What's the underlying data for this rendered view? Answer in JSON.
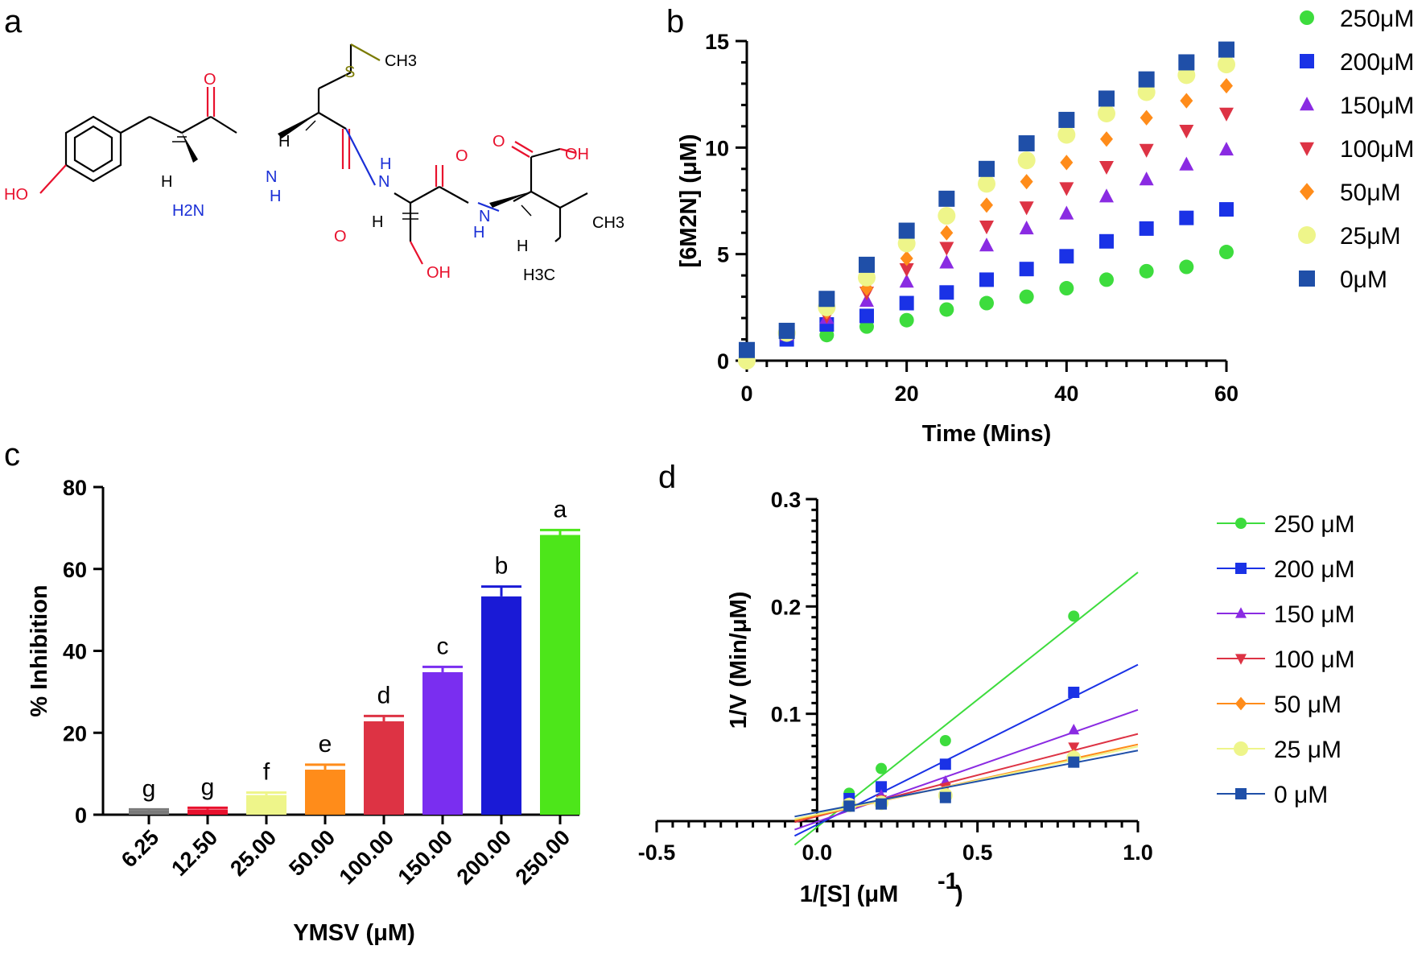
{
  "panels": {
    "a": {
      "label": "a"
    },
    "b": {
      "label": "b"
    },
    "c": {
      "label": "c"
    },
    "d": {
      "label": "d"
    }
  },
  "molecule": {
    "atoms": [
      "CH3",
      "S",
      "HO",
      "H",
      "H2N",
      "O",
      "H",
      "N",
      "H",
      "O",
      "N",
      "H",
      "H",
      "O",
      "OH",
      "H",
      "N",
      "O",
      "OH",
      "H",
      "CH3",
      "H3C"
    ],
    "colors": {
      "bond": "#000000",
      "oxygen": "#e8112d",
      "nitrogen": "#1a2fd6",
      "sulfur": "#7a7a00"
    }
  },
  "chart_data": [
    {
      "panel": "b",
      "type": "scatter",
      "xlabel": "Time (Mins)",
      "ylabel": "[6M2N] (μM)",
      "xlim": [
        0,
        60
      ],
      "ylim": [
        0,
        15
      ],
      "xticks": [
        "0",
        "20",
        "40",
        "60"
      ],
      "yticks": [
        "0",
        "5",
        "10",
        "15"
      ],
      "legend_position": "right",
      "x": [
        0,
        5,
        10,
        15,
        20,
        25,
        30,
        35,
        40,
        45,
        50,
        55,
        60
      ],
      "series": [
        {
          "name": "250μM",
          "color": "#3ddc3d",
          "marker": "circle",
          "values": [
            0.3,
            1.0,
            1.2,
            1.6,
            1.9,
            2.4,
            2.7,
            3.0,
            3.4,
            3.8,
            4.2,
            4.4,
            5.1
          ]
        },
        {
          "name": "200μM",
          "color": "#1a32e6",
          "marker": "square",
          "values": [
            0.2,
            1.0,
            1.7,
            2.1,
            2.7,
            3.2,
            3.8,
            4.3,
            4.9,
            5.6,
            6.2,
            6.7,
            7.1
          ]
        },
        {
          "name": "150μM",
          "color": "#8a2be2",
          "marker": "triangle-up",
          "values": [
            0.3,
            1.2,
            2.0,
            2.8,
            3.7,
            4.6,
            5.4,
            6.2,
            6.9,
            7.7,
            8.5,
            9.2,
            9.9
          ]
        },
        {
          "name": "100μM",
          "color": "#dd3344",
          "marker": "triangle-down",
          "values": [
            0.3,
            1.3,
            2.1,
            3.2,
            4.3,
            5.3,
            6.3,
            7.2,
            8.1,
            9.1,
            9.9,
            10.8,
            11.6
          ]
        },
        {
          "name": "50μM",
          "color": "#ff8c1a",
          "marker": "diamond",
          "values": [
            0.2,
            1.3,
            2.3,
            3.4,
            4.8,
            6.0,
            7.3,
            8.4,
            9.3,
            10.4,
            11.4,
            12.2,
            12.9
          ]
        },
        {
          "name": "25μM",
          "color": "#eef58a",
          "marker": "circle",
          "values": [
            0.0,
            1.3,
            2.5,
            3.9,
            5.5,
            6.8,
            8.3,
            9.4,
            10.6,
            11.6,
            12.6,
            13.4,
            13.9
          ]
        },
        {
          "name": "0μM",
          "color": "#1f4fa8",
          "marker": "square",
          "values": [
            0.5,
            1.4,
            2.9,
            4.5,
            6.1,
            7.6,
            9.0,
            10.2,
            11.3,
            12.3,
            13.2,
            14.0,
            14.6
          ]
        }
      ]
    },
    {
      "panel": "c",
      "type": "bar",
      "xlabel": "YMSV (μM)",
      "ylabel": "% Inhibition",
      "ylim": [
        0,
        80
      ],
      "yticks": [
        "0",
        "20",
        "40",
        "60",
        "80"
      ],
      "categories": [
        "6.25",
        "12.50",
        "25.00",
        "50.00",
        "100.00",
        "150.00",
        "200.00",
        "250.00"
      ],
      "values": [
        1.0,
        1.3,
        4.8,
        11.0,
        22.8,
        34.8,
        53.3,
        68.3
      ],
      "errors": [
        0.3,
        0.4,
        0.6,
        1.2,
        1.3,
        1.3,
        2.4,
        1.2
      ],
      "colors": [
        "#7a7a7a",
        "#e8112d",
        "#eef58a",
        "#ff8c1a",
        "#dd3344",
        "#7a2ef0",
        "#1a1ad6",
        "#4de61a"
      ],
      "significance": [
        "g",
        "g",
        "f",
        "e",
        "d",
        "c",
        "b",
        "a"
      ]
    },
    {
      "panel": "d",
      "type": "line",
      "xlabel": "1/[S] (μM",
      "xlabel_sup": "-1",
      "xlabel_end": ")",
      "ylabel": "1/V (Min/μM)",
      "xlim": [
        -0.5,
        1.0
      ],
      "ylim": [
        0,
        0.3
      ],
      "xticks": [
        "-0.5",
        "0.0",
        "0.5",
        "1.0"
      ],
      "yticks": [
        "0.1",
        "0.2",
        "0.3"
      ],
      "legend_position": "right",
      "x": [
        0.1,
        0.2,
        0.4,
        0.8
      ],
      "series": [
        {
          "name": "250 μM",
          "color": "#3ddc3d",
          "marker": "circle",
          "values": [
            0.026,
            0.049,
            0.075,
            0.191
          ],
          "slope": 0.2373,
          "intercept": -0.0055
        },
        {
          "name": "200 μM",
          "color": "#1a32e6",
          "marker": "square",
          "values": [
            0.021,
            0.032,
            0.053,
            0.12
          ],
          "slope": 0.1491,
          "intercept": -0.0033
        },
        {
          "name": "150 μM",
          "color": "#8a2be2",
          "marker": "triangle-up",
          "values": [
            0.017,
            0.024,
            0.037,
            0.085
          ],
          "slope": 0.1043,
          "intercept": -0.0006
        },
        {
          "name": "100 μM",
          "color": "#dd3344",
          "marker": "triangle-down",
          "values": [
            0.016,
            0.02,
            0.031,
            0.069
          ],
          "slope": 0.0769,
          "intercept": 0.0044
        },
        {
          "name": "50 μM",
          "color": "#ff8c1a",
          "marker": "diamond",
          "values": [
            0.015,
            0.018,
            0.027,
            0.061
          ],
          "slope": 0.0661,
          "intercept": 0.0054
        },
        {
          "name": "25 μM",
          "color": "#eef58a",
          "marker": "circle",
          "values": [
            0.015,
            0.017,
            0.024,
            0.059
          ],
          "slope": 0.0631,
          "intercept": 0.0064
        },
        {
          "name": "0 μM",
          "color": "#1f4fa8",
          "marker": "square",
          "values": [
            0.014,
            0.016,
            0.022,
            0.055
          ],
          "slope": 0.0575,
          "intercept": 0.0083
        }
      ]
    }
  ]
}
